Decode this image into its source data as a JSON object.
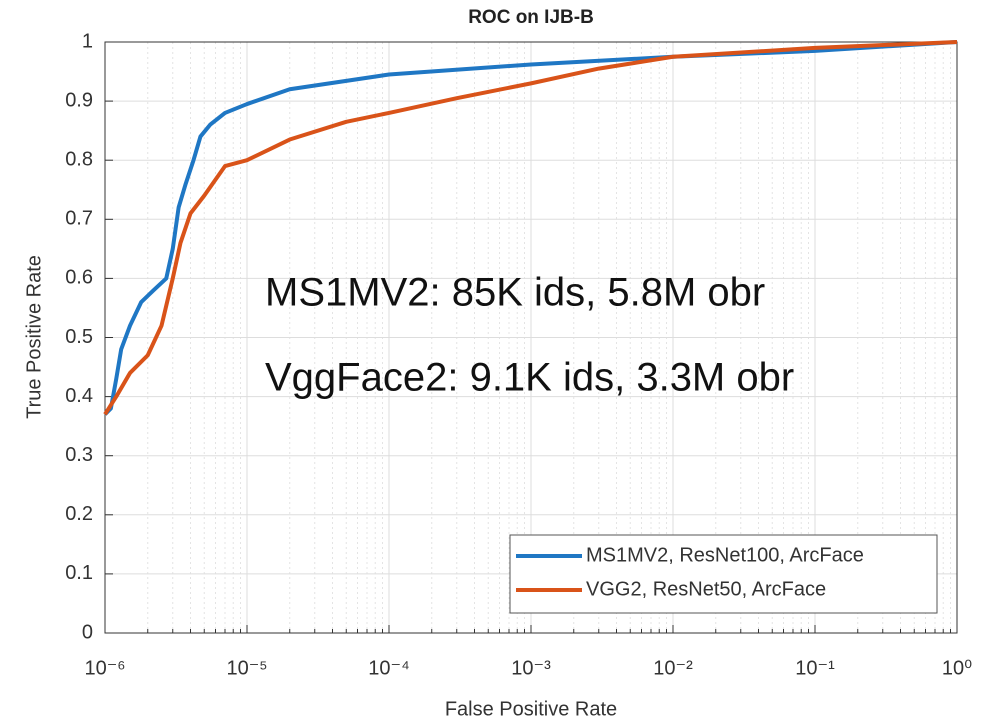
{
  "chart_data": {
    "type": "line",
    "title": "ROC on IJB-B",
    "xlabel": "False Positive Rate",
    "ylabel": "True Positive Rate",
    "xscale": "log",
    "grid": true,
    "legend": "lower right",
    "xlim": [
      1e-06,
      1
    ],
    "xticks": [
      {
        "value": 1e-06,
        "label": "10⁻⁶"
      },
      {
        "value": 1e-05,
        "label": "10⁻⁵"
      },
      {
        "value": 0.0001,
        "label": "10⁻⁴"
      },
      {
        "value": 0.001,
        "label": "10⁻³"
      },
      {
        "value": 0.01,
        "label": "10⁻²"
      },
      {
        "value": 0.1,
        "label": "10⁻¹"
      },
      {
        "value": 1,
        "label": "10⁰"
      }
    ],
    "ylim": [
      0,
      1
    ],
    "yticks": [
      0,
      0.1,
      0.2,
      0.3,
      0.4,
      0.5,
      0.6,
      0.7,
      0.8,
      0.9,
      1
    ],
    "annotations": [
      "MS1MV2: 85K ids, 5.8M obr",
      "VggFace2: 9.1K ids, 3.3M obr"
    ],
    "series": [
      {
        "name": "MS1MV2, ResNet100, ArcFace",
        "color": "#1f77c4",
        "x": [
          1e-06,
          1.1e-06,
          1.2e-06,
          1.3e-06,
          1.5e-06,
          1.8e-06,
          2.2e-06,
          2.7e-06,
          3e-06,
          3.3e-06,
          3.7e-06,
          4.2e-06,
          4.7e-06,
          5.5e-06,
          7e-06,
          1e-05,
          2e-05,
          0.0001,
          0.001,
          0.01,
          0.1,
          1
        ],
        "values": [
          0.37,
          0.38,
          0.43,
          0.48,
          0.52,
          0.56,
          0.58,
          0.6,
          0.65,
          0.72,
          0.76,
          0.8,
          0.84,
          0.86,
          0.88,
          0.895,
          0.92,
          0.945,
          0.962,
          0.975,
          0.985,
          1
        ]
      },
      {
        "name": "VGG2, ResNet50, ArcFace",
        "color": "#d95319",
        "x": [
          1e-06,
          1.2e-06,
          1.5e-06,
          2e-06,
          2.5e-06,
          3e-06,
          3.4e-06,
          4e-06,
          5e-06,
          7e-06,
          1e-05,
          2e-05,
          5e-05,
          0.0001,
          0.0003,
          0.001,
          0.003,
          0.01,
          0.1,
          1
        ],
        "values": [
          0.37,
          0.4,
          0.44,
          0.47,
          0.52,
          0.6,
          0.66,
          0.71,
          0.74,
          0.79,
          0.8,
          0.835,
          0.865,
          0.88,
          0.905,
          0.93,
          0.955,
          0.975,
          0.99,
          1
        ]
      }
    ]
  }
}
